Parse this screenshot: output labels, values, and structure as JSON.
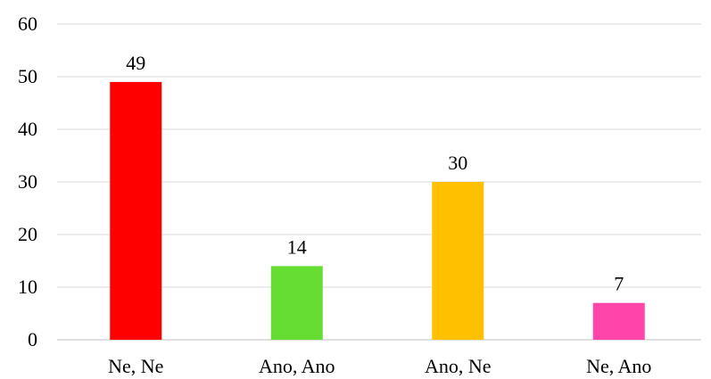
{
  "chart_data": {
    "type": "bar",
    "title": "",
    "xlabel": "",
    "ylabel": "",
    "categories": [
      "Ne, Ne",
      "Ano, Ano",
      "Ano, Ne",
      "Ne, Ano"
    ],
    "values": [
      49,
      14,
      30,
      7
    ],
    "data_labels": [
      "49",
      "14",
      "30",
      "7"
    ],
    "colors": [
      "#ff0000",
      "#66dd33",
      "#ffc000",
      "#ff44aa"
    ],
    "ylim": [
      0,
      60
    ],
    "yticks": [
      0,
      10,
      20,
      30,
      40,
      50,
      60
    ],
    "ytick_labels": [
      "0",
      "10",
      "20",
      "30",
      "40",
      "50",
      "60"
    ],
    "grid": true,
    "legend": "none"
  }
}
